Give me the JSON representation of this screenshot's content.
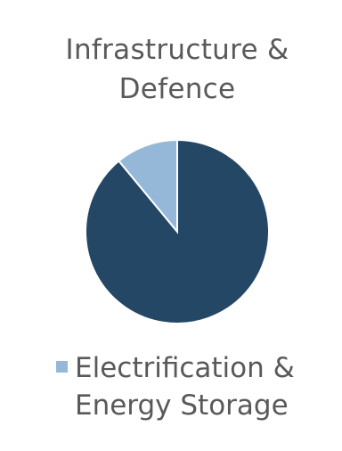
{
  "chart_data": {
    "type": "pie",
    "title": "Infrastructure & Defence",
    "title_lines": [
      "Infrastructure &",
      "Defence"
    ],
    "slices": [
      {
        "label": "Electrification & Energy Storage",
        "value": 11,
        "color": "#95b8d9"
      },
      {
        "label": "",
        "value": 89,
        "color": "#244766"
      }
    ],
    "legend": {
      "position": "bottom",
      "entries": [
        {
          "label": "Electrification & Energy Storage",
          "label_lines": [
            "Electrification &",
            "Energy Storage"
          ],
          "color": "#95b8d9"
        }
      ]
    }
  }
}
